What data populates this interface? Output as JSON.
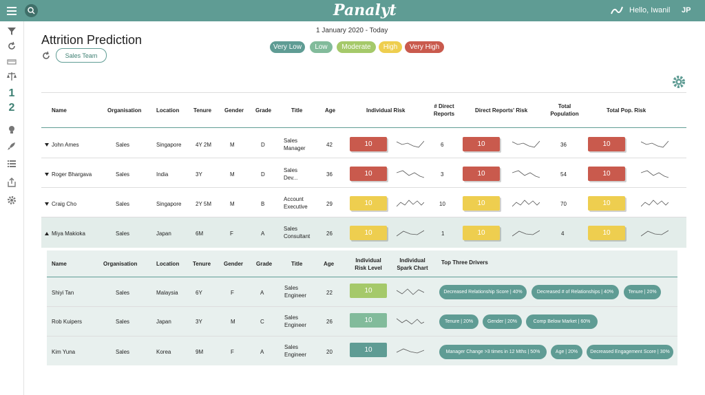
{
  "topbar": {
    "brand": "Panalyt",
    "greeting": "Hello, Iwanil",
    "initials": "JP"
  },
  "page": {
    "title": "Attrition Prediction",
    "filter_chip": "Sales Team",
    "date_range": "1 January 2020 - Today"
  },
  "legend": [
    {
      "label": "Very Low",
      "color": "#5f9c94"
    },
    {
      "label": "Low",
      "color": "#82bb9b"
    },
    {
      "label": "Moderate",
      "color": "#a5c96a"
    },
    {
      "label": "High",
      "color": "#eece4f"
    },
    {
      "label": "Very High",
      "color": "#c95a4d"
    }
  ],
  "colors": {
    "very_high": "#c95a4d",
    "high": "#eece4f",
    "low": "#82bb9b",
    "very_low": "#5f9c94",
    "accent": "#5f9c94"
  },
  "main_table": {
    "headers": {
      "name": "Name",
      "organisation": "Organisation",
      "location": "Location",
      "tenure": "Tenure",
      "gender": "Gender",
      "grade": "Grade",
      "title": "Title",
      "age": "Age",
      "individual_risk": "Individual Risk",
      "direct_reports": "# Direct Reports",
      "direct_reports_risk": "Direct Reports' Risk",
      "total_population": "Total Population",
      "total_pop_risk": "Total Pop. Risk"
    },
    "rows": [
      {
        "name": "John Ames",
        "org": "Sales",
        "location": "Singapore",
        "tenure": "4Y 2M",
        "gender": "M",
        "grade": "D",
        "title": "Sales Manager",
        "age": "42",
        "ind_risk": "10",
        "direct": "6",
        "dr_risk": "10",
        "total_pop": "36",
        "tp_risk": "10"
      },
      {
        "name": "Roger Bhargava",
        "org": "Sales",
        "location": "India",
        "tenure": "3Y",
        "gender": "M",
        "grade": "D",
        "title": "Sales Dev...",
        "age": "36",
        "ind_risk": "10",
        "direct": "3",
        "dr_risk": "10",
        "total_pop": "54",
        "tp_risk": "10"
      },
      {
        "name": "Craig Cho",
        "org": "Sales",
        "location": "Singapore",
        "tenure": "2Y 5M",
        "gender": "M",
        "grade": "B",
        "title": "Account Executive",
        "age": "29",
        "ind_risk": "10",
        "direct": "10",
        "dr_risk": "10",
        "total_pop": "70",
        "tp_risk": "10"
      },
      {
        "name": "Miya Makioka",
        "org": "Sales",
        "location": "Japan",
        "tenure": "6M",
        "gender": "F",
        "grade": "A",
        "title": "Sales Consultant",
        "age": "26",
        "ind_risk": "10",
        "direct": "1",
        "dr_risk": "10",
        "total_pop": "4",
        "tp_risk": "10"
      }
    ]
  },
  "sub_table": {
    "headers": {
      "name": "Name",
      "organisation": "Organisation",
      "location": "Location",
      "tenure": "Tenure",
      "gender": "Gender",
      "grade": "Grade",
      "title": "Title",
      "age": "Age",
      "risk_level": "Individual Risk Level",
      "spark": "Individual Spark Chart",
      "drivers": "Top Three Drivers"
    },
    "rows": [
      {
        "name": "Shiyi Tan",
        "org": "Sales",
        "location": "Malaysia",
        "tenure": "6Y",
        "gender": "F",
        "grade": "A",
        "title": "Sales Engineer",
        "age": "22",
        "risk": "10",
        "drivers": [
          "Decreased Relationship Score | 40%",
          "Decreased # of Relationships | 40%",
          "Tenure | 20%"
        ]
      },
      {
        "name": "Rob Kuipers",
        "org": "Sales",
        "location": "Japan",
        "tenure": "3Y",
        "gender": "M",
        "grade": "C",
        "title": "Sales Engineer",
        "age": "26",
        "risk": "10",
        "drivers": [
          "Tenure | 20%",
          "Gender | 20%",
          "Comp Below Market | 60%"
        ]
      },
      {
        "name": "Kim Yuna",
        "org": "Sales",
        "location": "Korea",
        "tenure": "9M",
        "gender": "F",
        "grade": "A",
        "title": "Sales Engineer",
        "age": "20",
        "risk": "10",
        "drivers": [
          "Manager Change >3 times in 12 Mths | 50%",
          "Age | 20%",
          "Decreased Engagement Score | 30%"
        ]
      }
    ]
  }
}
